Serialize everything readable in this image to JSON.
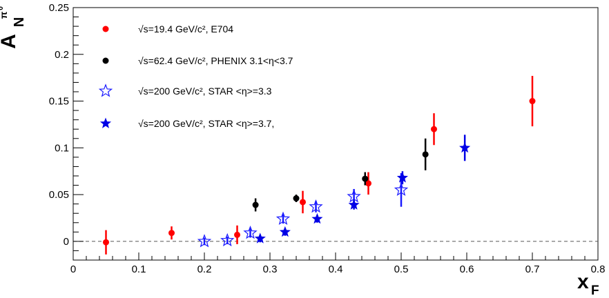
{
  "chart_data": {
    "type": "scatter",
    "xlim": [
      0,
      0.8
    ],
    "ylim": [
      -0.02,
      0.25
    ],
    "x_ticks": [
      "0",
      "0.1",
      "0.2",
      "0.3",
      "0.4",
      "0.5",
      "0.6",
      "0.7",
      "0.8"
    ],
    "y_ticks": [
      "0",
      "0.05",
      "0.1",
      "0.15",
      "0.2",
      "0.25"
    ],
    "xlabel": {
      "main": "x",
      "sub": "F"
    },
    "ylabel": {
      "main": "A",
      "sub": "N",
      "sup": "π",
      "sup_sup": "0"
    },
    "zero_line": true,
    "grid": false,
    "legend_position": "top-left",
    "series": [
      {
        "name": "√s=19.4 GeV/c², E704",
        "marker": "circle",
        "color": "#ff0000",
        "points": [
          {
            "x": 0.05,
            "y": -0.001,
            "err": 0.013
          },
          {
            "x": 0.15,
            "y": 0.009,
            "err": 0.007
          },
          {
            "x": 0.25,
            "y": 0.007,
            "err": 0.01
          },
          {
            "x": 0.35,
            "y": 0.042,
            "err": 0.012
          },
          {
            "x": 0.45,
            "y": 0.062,
            "err": 0.012
          },
          {
            "x": 0.55,
            "y": 0.12,
            "err": 0.017
          },
          {
            "x": 0.7,
            "y": 0.15,
            "err": 0.027
          }
        ]
      },
      {
        "name": "√s=62.4 GeV/c², PHENIX 3.1<η<3.7",
        "marker": "circle",
        "color": "#000000",
        "points": [
          {
            "x": 0.278,
            "y": 0.039,
            "err": 0.007
          },
          {
            "x": 0.34,
            "y": 0.046,
            "err": 0.004
          },
          {
            "x": 0.445,
            "y": 0.067,
            "err": 0.007
          },
          {
            "x": 0.537,
            "y": 0.093,
            "err": 0.017
          }
        ]
      },
      {
        "name": "√s=200 GeV/c², STAR <η>=3.3",
        "marker": "open-star",
        "color": "#1a1aff",
        "points": [
          {
            "x": 0.2,
            "y": 0.0,
            "err": 0.004
          },
          {
            "x": 0.235,
            "y": 0.001,
            "err": 0.004
          },
          {
            "x": 0.27,
            "y": 0.009,
            "err": 0.005
          },
          {
            "x": 0.32,
            "y": 0.024,
            "err": 0.005
          },
          {
            "x": 0.37,
            "y": 0.037,
            "err": 0.006
          },
          {
            "x": 0.428,
            "y": 0.048,
            "err": 0.008
          },
          {
            "x": 0.5,
            "y": 0.055,
            "err": 0.018
          }
        ]
      },
      {
        "name": "√s=200 GeV/c², STAR <η>=3.7,",
        "marker": "filled-star",
        "color": "#0000e6",
        "points": [
          {
            "x": 0.285,
            "y": 0.003,
            "err": 0.004
          },
          {
            "x": 0.323,
            "y": 0.01,
            "err": 0.004
          },
          {
            "x": 0.372,
            "y": 0.024,
            "err": 0.004
          },
          {
            "x": 0.428,
            "y": 0.039,
            "err": 0.005
          },
          {
            "x": 0.502,
            "y": 0.068,
            "err": 0.007
          },
          {
            "x": 0.597,
            "y": 0.1,
            "err": 0.014
          }
        ]
      }
    ]
  }
}
